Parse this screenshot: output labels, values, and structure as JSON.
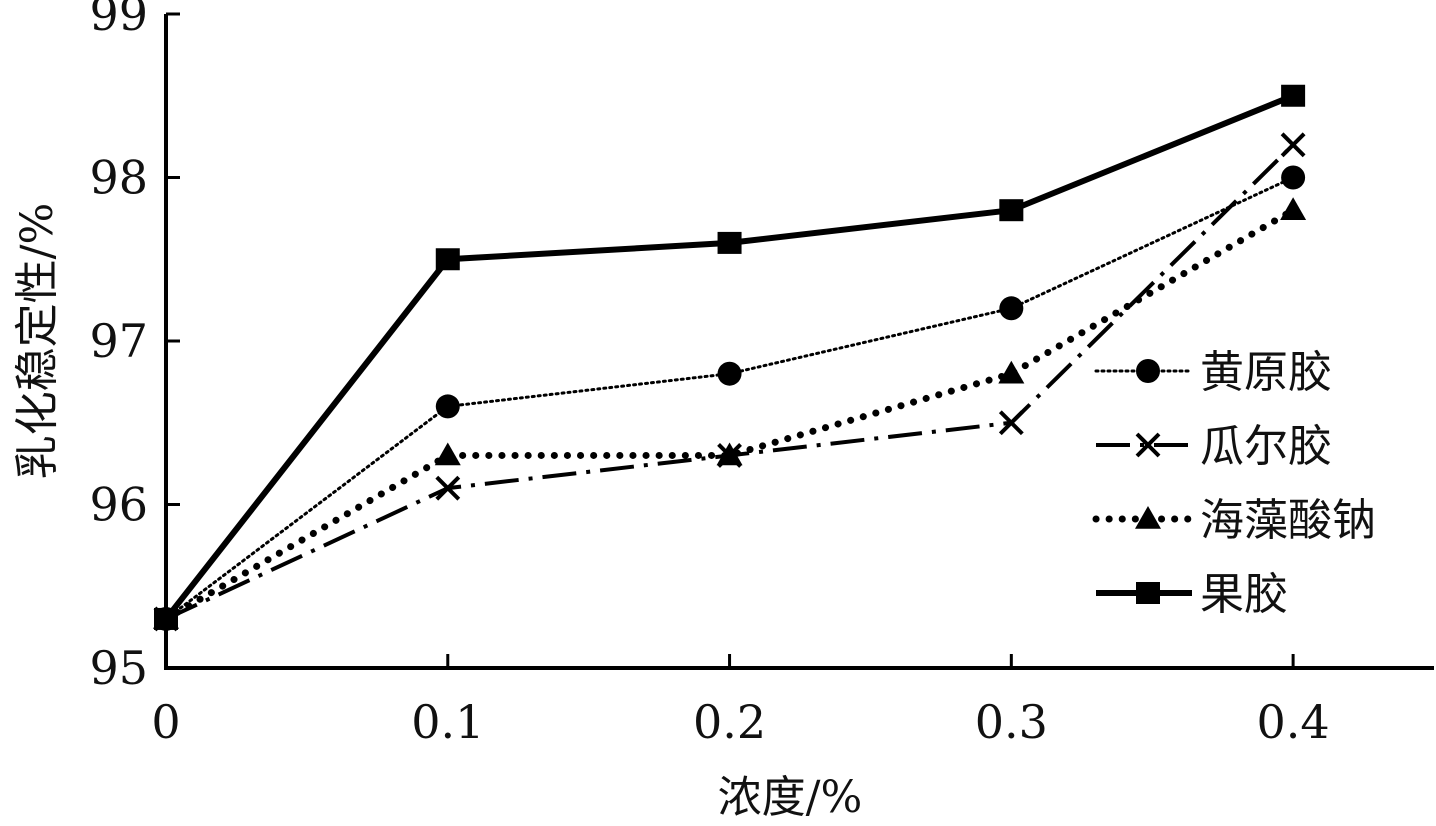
{
  "chart_data": {
    "type": "line",
    "title": "",
    "xlabel": "浓度/%",
    "ylabel": "乳化稳定性/%",
    "x": [
      0,
      0.1,
      0.2,
      0.3,
      0.4
    ],
    "x_tick_labels": [
      "0",
      "0.1",
      "0.2",
      "0.3",
      "0.4"
    ],
    "xlim": [
      0,
      0.45
    ],
    "ylim": [
      95,
      99
    ],
    "y_ticks": [
      95,
      96,
      97,
      98,
      99
    ],
    "y_tick_labels": [
      "95",
      "96",
      "97",
      "98",
      "99"
    ],
    "grid": false,
    "legend_position": "right-middle",
    "series": [
      {
        "name": "黄原胶",
        "marker": "circle",
        "line_style": "dotted-fine",
        "color": "#000000",
        "values": [
          95.3,
          96.6,
          96.8,
          97.2,
          98.0
        ]
      },
      {
        "name": "瓜尔胶",
        "marker": "x",
        "line_style": "dash-dot",
        "color": "#000000",
        "values": [
          95.3,
          96.1,
          96.3,
          96.5,
          98.2
        ]
      },
      {
        "name": "海藻酸钠",
        "marker": "triangle",
        "line_style": "dotted-bold",
        "color": "#000000",
        "values": [
          95.3,
          96.3,
          96.3,
          96.8,
          97.8
        ]
      },
      {
        "name": "果胶",
        "marker": "square",
        "line_style": "solid",
        "color": "#000000",
        "values": [
          95.3,
          97.5,
          97.6,
          97.8,
          98.5
        ]
      }
    ]
  }
}
